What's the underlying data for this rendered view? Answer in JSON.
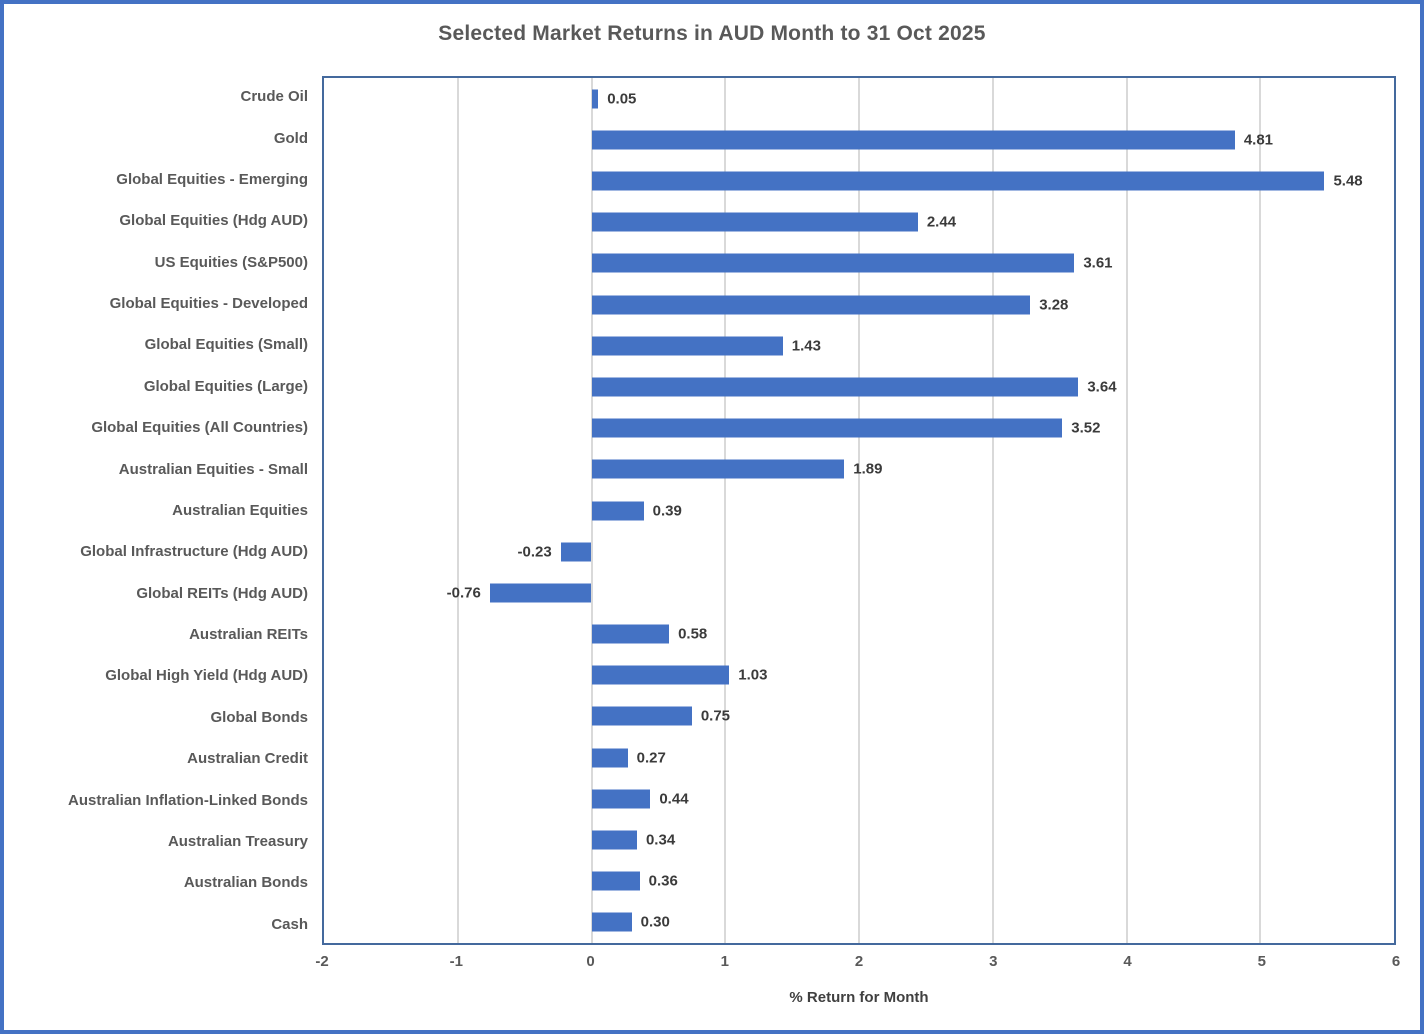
{
  "chart_data": {
    "type": "bar",
    "orientation": "horizontal",
    "title": "Selected Market Returns in AUD Month to 31 Oct 2025",
    "xlabel": "% Return for Month",
    "ylabel": "",
    "xlim": [
      -2,
      6
    ],
    "xticks": [
      -2,
      -1,
      0,
      1,
      2,
      3,
      4,
      5,
      6
    ],
    "grid": "vertical",
    "legend": "none",
    "categories": [
      "Crude Oil",
      "Gold",
      "Global Equities - Emerging",
      "Global Equities (Hdg AUD)",
      "US Equities (S&P500)",
      "Global Equities - Developed",
      "Global Equities (Small)",
      "Global Equities (Large)",
      "Global Equities (All Countries)",
      "Australian Equities - Small",
      "Australian Equities",
      "Global Infrastructure (Hdg AUD)",
      "Global REITs (Hdg AUD)",
      "Australian REITs",
      "Global High Yield (Hdg AUD)",
      "Global Bonds",
      "Australian Credit",
      "Australian Inflation-Linked Bonds",
      "Australian Treasury",
      "Australian Bonds",
      "Cash"
    ],
    "values": [
      0.05,
      4.81,
      5.48,
      2.44,
      3.61,
      3.28,
      1.43,
      3.64,
      3.52,
      1.89,
      0.39,
      -0.23,
      -0.76,
      0.58,
      1.03,
      0.75,
      0.27,
      0.44,
      0.34,
      0.36,
      0.3
    ],
    "value_labels": [
      "0.05",
      "4.81",
      "5.48",
      "2.44",
      "3.61",
      "3.28",
      "1.43",
      "3.64",
      "3.52",
      "1.89",
      "0.39",
      "-0.23",
      "-0.76",
      "0.58",
      "1.03",
      "0.75",
      "0.27",
      "0.44",
      "0.34",
      "0.36",
      "0.30"
    ],
    "colors": {
      "bar": "#4472C4",
      "plot_border": "#44699D",
      "outer_border": "#4472C4",
      "gridline": "#D9D9D9",
      "title_text": "#595959",
      "category_text": "#595959",
      "value_text": "#3B3B3B",
      "tick_text": "#595959",
      "axis_title_text": "#404040",
      "background": "#FFFFFF"
    }
  }
}
